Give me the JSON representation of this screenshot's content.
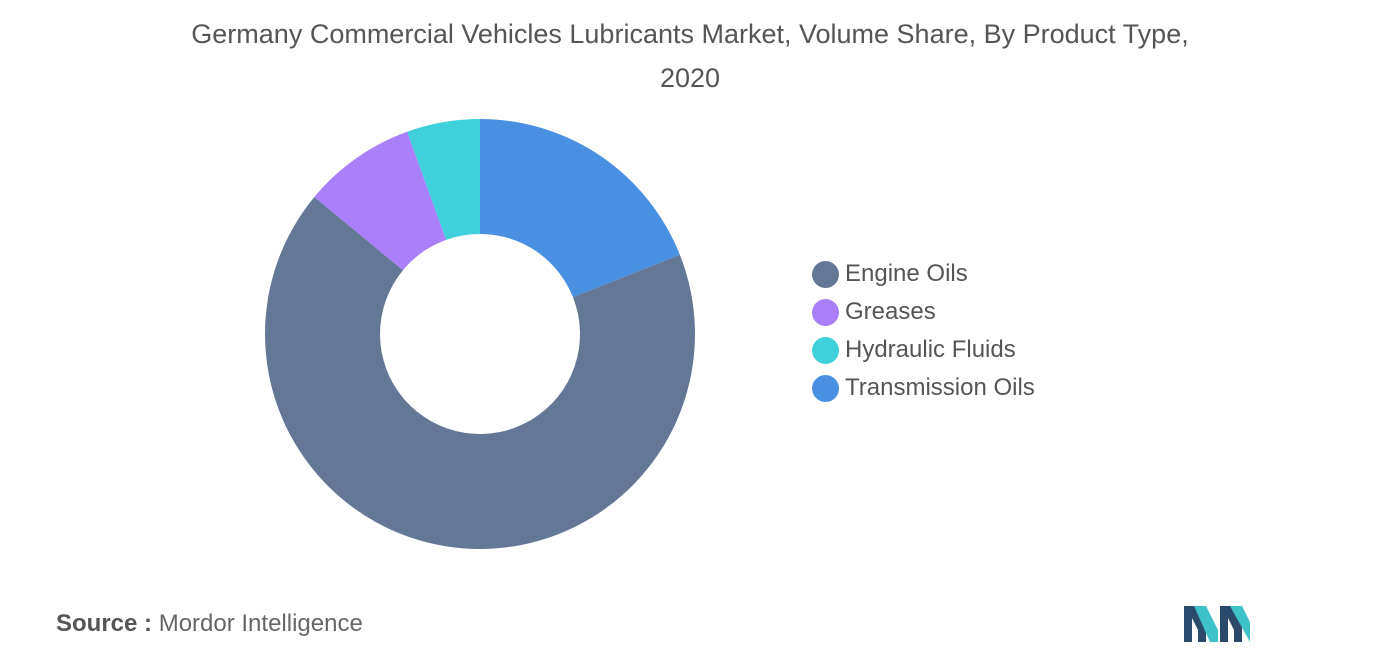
{
  "chart_data": {
    "type": "pie",
    "title": "Germany Commercial Vehicles Lubricants Market, Volume Share, By Product Type, 2020",
    "donut": true,
    "start_angle_deg": 90,
    "direction": "clockwise",
    "categories": [
      "Transmission Oils",
      "Engine Oils",
      "Greases",
      "Hydraulic Fluids"
    ],
    "values": [
      19,
      67,
      8.5,
      5.5
    ],
    "colors": [
      "#4a90e2",
      "#657797",
      "#a97ffa",
      "#40d0db"
    ],
    "legend": {
      "placement": "right",
      "items": [
        {
          "label": "Engine Oils",
          "color": "#657797"
        },
        {
          "label": "Greases",
          "color": "#a97ffa"
        },
        {
          "label": "Hydraulic Fluids",
          "color": "#40d0db"
        },
        {
          "label": "Transmission Oils",
          "color": "#4a90e2"
        }
      ]
    }
  },
  "source": {
    "prefix": "Source :",
    "name": "Mordor Intelligence"
  },
  "logo": {
    "icon": "mordor-intelligence-logo-icon",
    "colors": [
      "#2b4a6b",
      "#3fc1c9"
    ]
  }
}
